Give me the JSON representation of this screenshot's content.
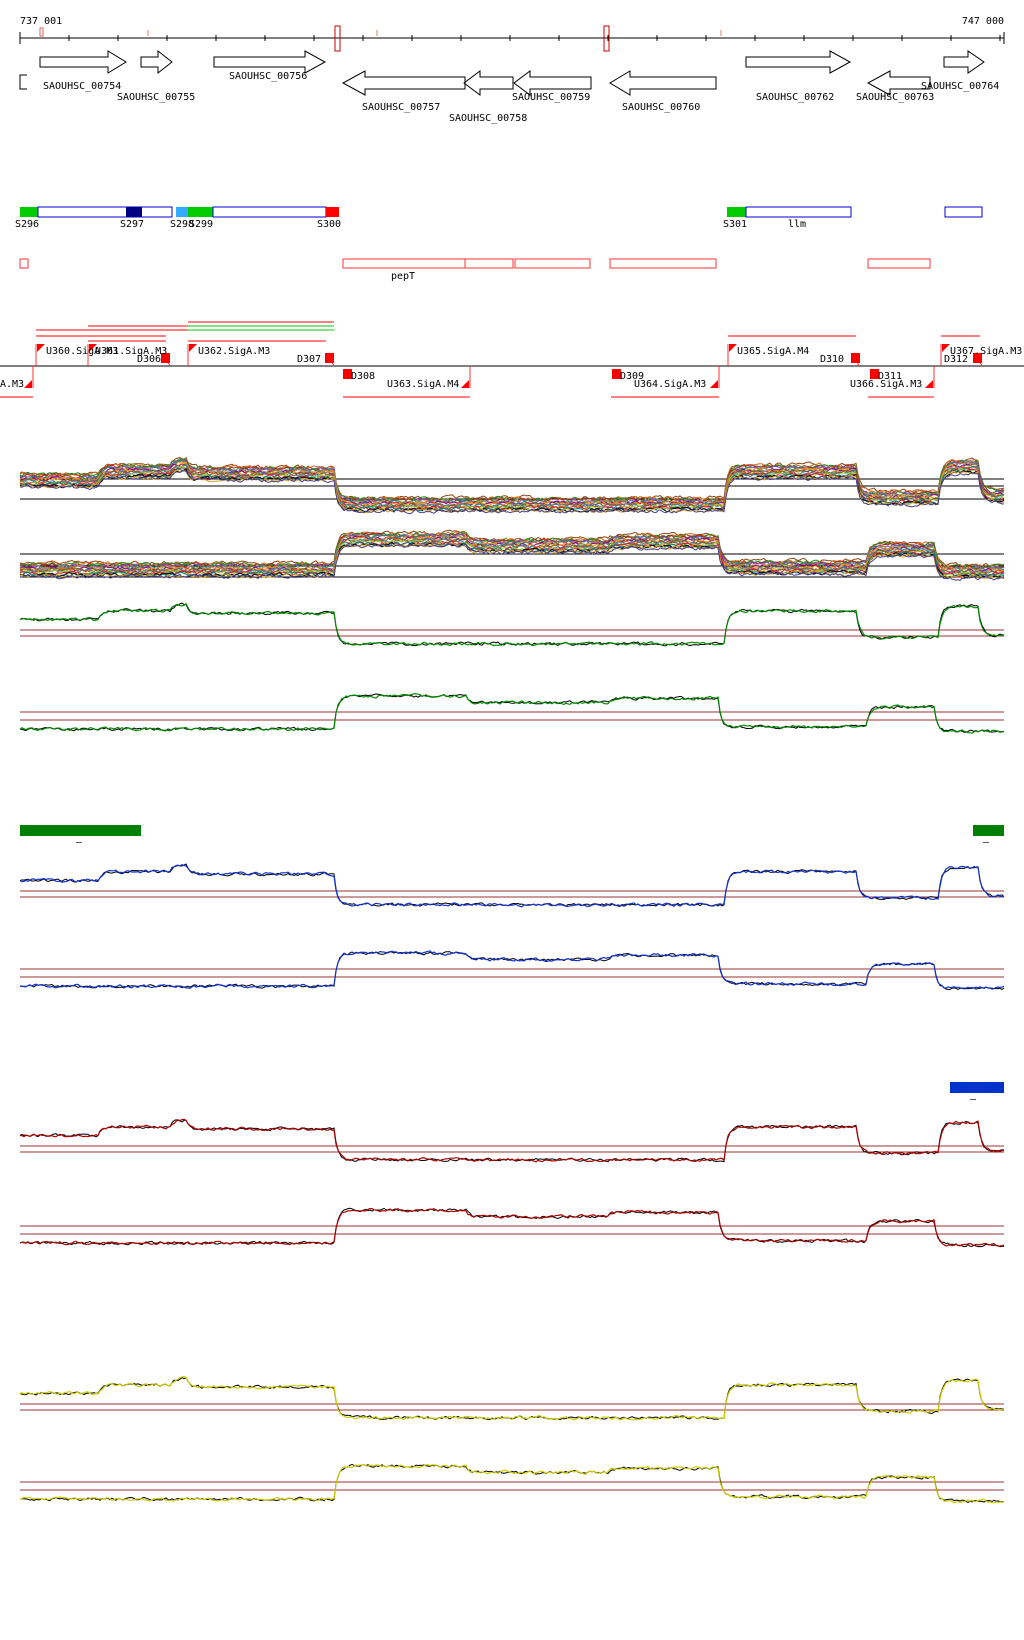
{
  "coordinates": {
    "start_label": "737 001",
    "end_label": "747 000"
  },
  "genes": [
    "SAOUHSC_00754",
    "SAOUHSC_00755",
    "SAOUHSC_00756",
    "SAOUHSC_00757",
    "SAOUHSC_00758",
    "SAOUHSC_00759",
    "SAOUHSC_00760",
    "SAOUHSC_00762",
    "SAOUHSC_00763",
    "SAOUHSC_00764"
  ],
  "segments": [
    "S296",
    "S297",
    "S298",
    "S299",
    "S300",
    "S301",
    "llm"
  ],
  "operon_label": "pepT",
  "upshifts": [
    "U360.SigA.M3",
    "U361.SigA.M3",
    "U362.SigA.M3",
    "U365.SigA.M4",
    "U367.SigA.M3"
  ],
  "downshifts": [
    "D306",
    "D307",
    "D310",
    "D312"
  ],
  "reverse_upshifts": [
    "A.M3",
    "U363.SigA.M4",
    "U364.SigA.M3",
    "U366.SigA.M3"
  ],
  "reverse_downshifts": [
    "D308",
    "D309",
    "D311"
  ],
  "dash_marks": [
    "–",
    "–",
    "–"
  ],
  "colors": {
    "gene_arrow": "#000000",
    "segment_green": "#00cc00",
    "segment_navy": "#000080",
    "segment_cyan": "#33aaff",
    "segment_red": "#ff0000",
    "segment_outline": "#0000cc",
    "operon_outline": "#ff3333",
    "shift_marker": "#ff0000",
    "guide_line": "#993333",
    "green_profile": "#008800",
    "blue_profile": "#1133cc",
    "red_profile": "#aa0000",
    "yellow_profile": "#cccc00",
    "green_bar": "#008000",
    "blue_bar": "#0033cc"
  }
}
